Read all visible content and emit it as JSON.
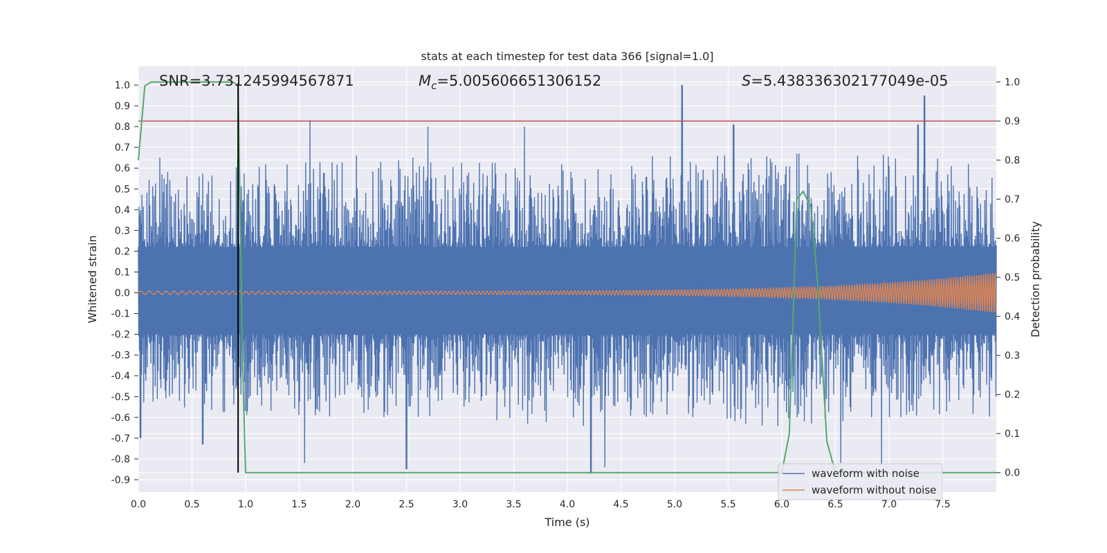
{
  "chart_data": {
    "type": "line",
    "title": "stats at each timestep for test data 366 [signal=1.0]",
    "xlabel": "Time (s)",
    "ylabel": "Whitened strain",
    "y2label": "Detection probability",
    "xlim": [
      0.0,
      8.0
    ],
    "ylim": [
      -0.96,
      1.09
    ],
    "y2lim": [
      -0.05,
      1.04
    ],
    "xticks": [
      "0.0",
      "0.5",
      "1.0",
      "1.5",
      "2.0",
      "2.5",
      "3.0",
      "3.5",
      "4.0",
      "4.5",
      "5.0",
      "5.5",
      "6.0",
      "6.5",
      "7.0",
      "7.5"
    ],
    "yticks": [
      "1.0",
      "0.9",
      "0.8",
      "0.7",
      "0.6",
      "0.5",
      "0.4",
      "0.3",
      "0.2",
      "0.1",
      "0.0",
      "-0.1",
      "-0.2",
      "-0.3",
      "-0.4",
      "-0.5",
      "-0.6",
      "-0.7",
      "-0.8",
      "-0.9"
    ],
    "y2ticks": [
      "1.0",
      "0.9",
      "0.8",
      "0.7",
      "0.6",
      "0.5",
      "0.4",
      "0.3",
      "0.2",
      "0.1",
      "0.0"
    ],
    "grid": true,
    "legend_position": "lower-right",
    "annotations": {
      "snr": "SNR=3.731245994567871",
      "mc_prefix": "M",
      "mc_sub": "c",
      "mc_value": "=5.005606651306152",
      "s_prefix": "S",
      "s_value": "=5.438336302177049e-05"
    },
    "threshold": {
      "value": 0.9,
      "axis": "right",
      "color": "#c44e52"
    },
    "marker_line": {
      "x": 0.93,
      "color": "#000000"
    },
    "series": [
      {
        "name": "waveform with noise",
        "axis": "left",
        "color": "#4c72b0",
        "description_envelope_upper": [
          [
            0.0,
            0.45
          ],
          [
            1.0,
            0.5
          ],
          [
            2.0,
            0.55
          ],
          [
            3.0,
            0.52
          ],
          [
            4.0,
            0.5
          ],
          [
            5.0,
            0.55
          ],
          [
            6.0,
            0.55
          ],
          [
            7.0,
            0.55
          ],
          [
            8.0,
            0.5
          ]
        ],
        "description_envelope_lower": [
          [
            0.0,
            -0.45
          ],
          [
            1.0,
            -0.5
          ],
          [
            2.0,
            -0.5
          ],
          [
            3.0,
            -0.5
          ],
          [
            4.0,
            -0.55
          ],
          [
            5.0,
            -0.5
          ],
          [
            6.0,
            -0.55
          ],
          [
            7.0,
            -0.5
          ],
          [
            8.0,
            -0.5
          ]
        ],
        "peaks": [
          [
            0.2,
            0.65
          ],
          [
            0.93,
            0.65
          ],
          [
            1.6,
            0.83
          ],
          [
            2.7,
            0.8
          ],
          [
            3.6,
            0.8
          ],
          [
            5.07,
            1.0
          ],
          [
            5.55,
            0.81
          ],
          [
            7.27,
            0.81
          ],
          [
            7.33,
            0.95
          ]
        ],
        "troughs": [
          [
            0.02,
            -0.7
          ],
          [
            0.6,
            -0.73
          ],
          [
            1.55,
            -0.82
          ],
          [
            2.5,
            -0.85
          ],
          [
            4.22,
            -0.87
          ],
          [
            4.35,
            -0.84
          ],
          [
            6.55,
            -0.82
          ],
          [
            6.93,
            -0.83
          ]
        ]
      },
      {
        "name": "waveform without noise",
        "axis": "left",
        "color": "#dd8452",
        "amplitude_start": 0.008,
        "amplitude_end": 0.1
      },
      {
        "name": "detection probability",
        "axis": "right",
        "color": "#55a868",
        "x": [
          0.0,
          0.06,
          0.12,
          0.5,
          0.88,
          0.93,
          0.97,
          1.0,
          1.5,
          5.0,
          5.6,
          6.0,
          6.07,
          6.14,
          6.2,
          6.27,
          6.33,
          6.42,
          6.5,
          7.0,
          8.0
        ],
        "y": [
          0.8,
          0.99,
          1.0,
          1.0,
          1.0,
          0.99,
          0.3,
          0.0,
          0.0,
          0.0,
          0.0,
          0.0,
          0.1,
          0.7,
          0.72,
          0.68,
          0.5,
          0.08,
          0.0,
          0.0,
          0.0
        ]
      }
    ]
  }
}
